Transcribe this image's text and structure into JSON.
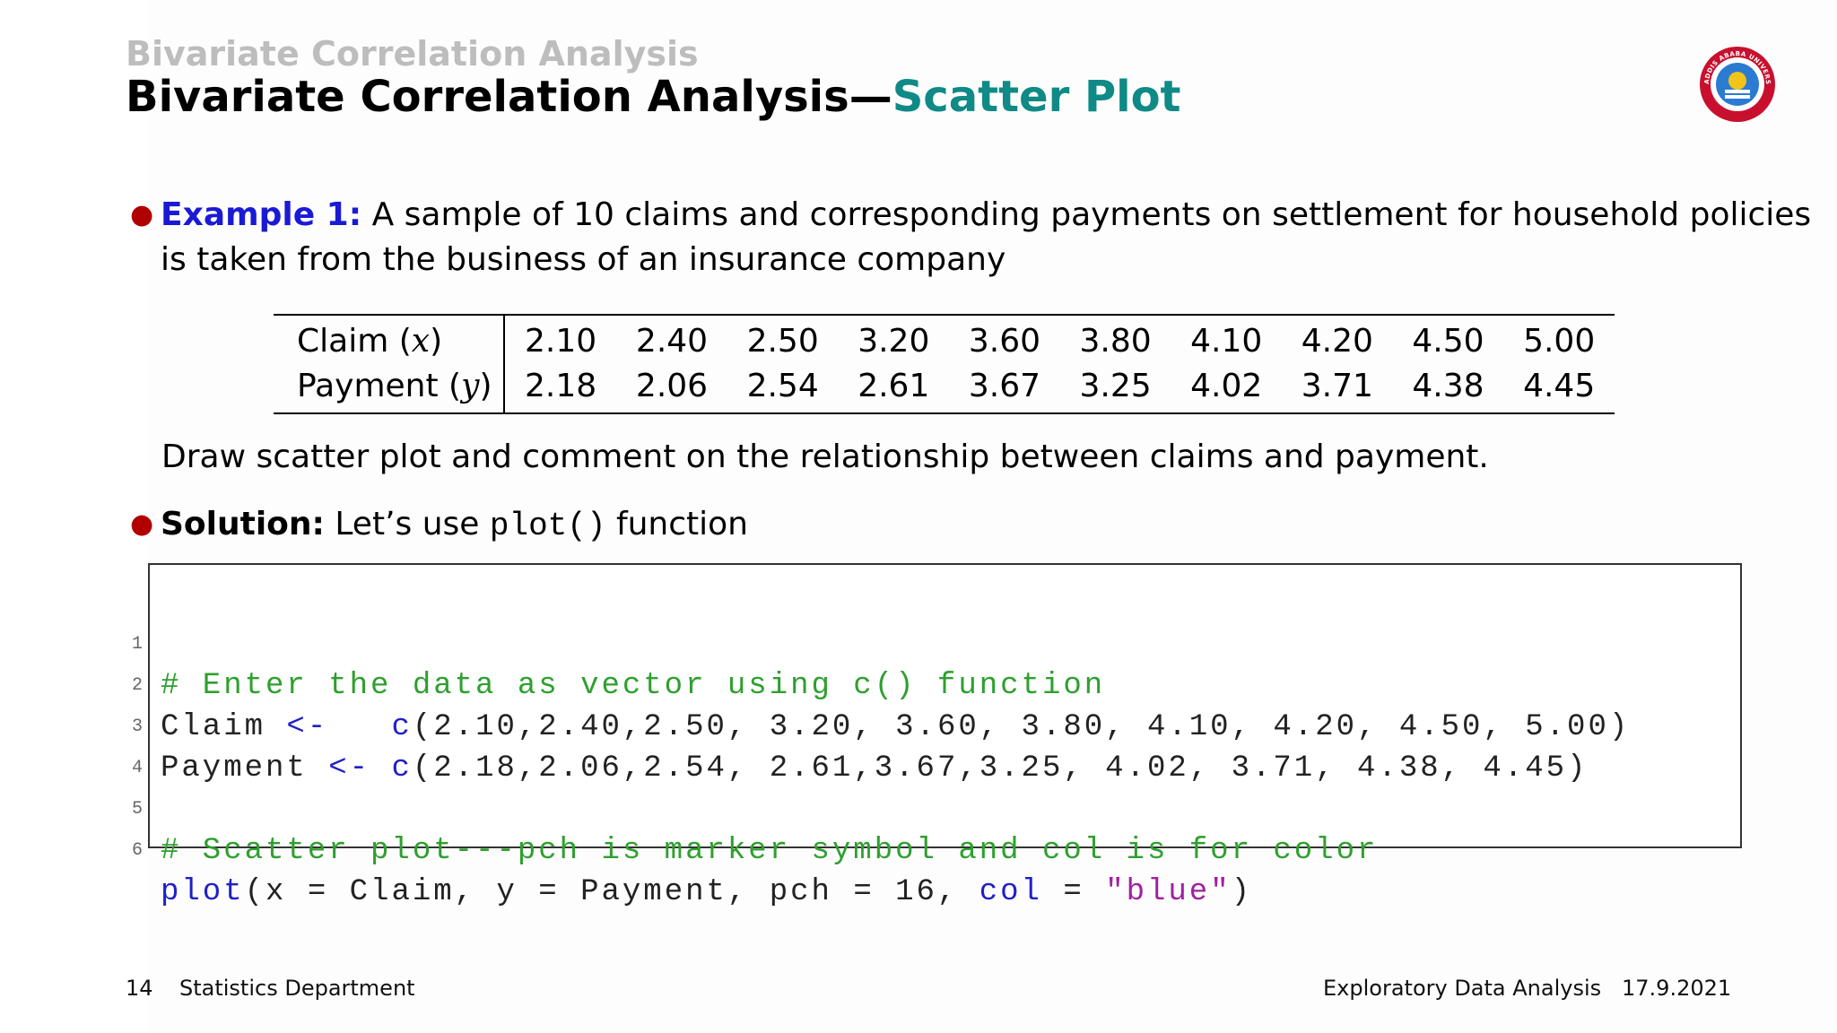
{
  "header": {
    "section_title": "Bivariate Correlation Analysis",
    "frame_title_main": "Bivariate Correlation Analysis—",
    "frame_title_accent": "Scatter Plot"
  },
  "logo": {
    "text": "ADDIS ABABA UNIVERSITY",
    "icon": "university-seal-icon",
    "color": "#c8102e"
  },
  "bullets": [
    {
      "label": "Example 1:",
      "text_line1": " A sample of 10 claims and corresponding payments on settlement for household policies",
      "text_line2": "is taken from the business of an insurance company"
    },
    {
      "label": "Solution:",
      "text_before": " Let’s use ",
      "code": "plot()",
      "text_after": " function"
    }
  ],
  "table": {
    "rows": [
      {
        "label": "Claim (",
        "var": "x",
        "label_end": ")",
        "values": [
          "2.10",
          "2.40",
          "2.50",
          "3.20",
          "3.60",
          "3.80",
          "4.10",
          "4.20",
          "4.50",
          "5.00"
        ]
      },
      {
        "label": "Payment (",
        "var": "y",
        "label_end": ")",
        "values": [
          "2.18",
          "2.06",
          "2.54",
          "2.61",
          "3.67",
          "3.25",
          "4.02",
          "3.71",
          "4.38",
          "4.45"
        ]
      }
    ]
  },
  "instruction": "Draw scatter plot and comment on the relationship between claims and payment.",
  "code": {
    "lines": [
      {
        "num": "1",
        "comment": "# Enter the data as vector using c() function"
      },
      {
        "num": "2",
        "pre": "Claim ",
        "op": "<-",
        "mid": "   ",
        "fn": "c",
        "post": "(2.10,2.40,2.50, 3.20, 3.60, 3.80, 4.10, 4.20, 4.50, 5.00)"
      },
      {
        "num": "3",
        "pre": "Payment ",
        "op": "<-",
        "mid": " ",
        "fn": "c",
        "post": "(2.18,2.06,2.54, 2.61,3.67,3.25, 4.02, 3.71, 4.38, 4.45)"
      },
      {
        "num": "4"
      },
      {
        "num": "5",
        "comment": "# Scatter plot---pch is marker symbol and col is for color"
      },
      {
        "num": "6",
        "fn1": "plot",
        "p1": "(x = Claim, y = Payment, pch = 16, ",
        "fn2": "col",
        "p2": " = ",
        "str": "\"blue\"",
        "p3": ")"
      }
    ]
  },
  "footer": {
    "page_number": "14",
    "department": "Statistics Department",
    "course": "Exploratory Data Analysis",
    "date": "17.9.2021"
  },
  "colors": {
    "accent_teal": "#0f8a86",
    "example_blue": "#1a1ad6",
    "bullet_red": "#b00000",
    "code_comment": "#2ea02e",
    "code_keyword": "#2020c8",
    "code_string": "#a020a0"
  }
}
